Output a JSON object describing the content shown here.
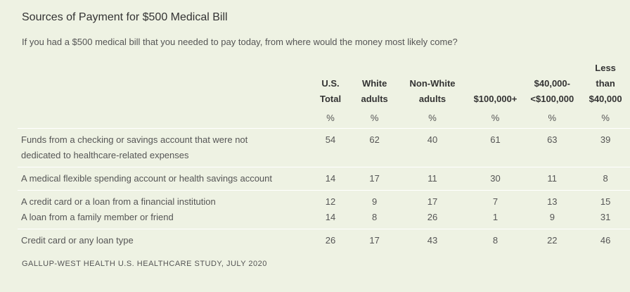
{
  "title": "Sources of Payment for $500 Medical Bill",
  "subtitle": "If you had a $500 medical bill that you needed to pay today, from where would the money most likely come?",
  "columns": [
    {
      "line1": "",
      "line2": "U.S.",
      "line3": "Total"
    },
    {
      "line1": "",
      "line2": "White",
      "line3": "adults"
    },
    {
      "line1": "",
      "line2": "Non-White",
      "line3": "adults"
    },
    {
      "line1": "",
      "line2": "",
      "line3": "$100,000+"
    },
    {
      "line1": "",
      "line2": "$40,000-",
      "line3": "<$100,000"
    },
    {
      "line1": "Less",
      "line2": "than",
      "line3": "$40,000"
    }
  ],
  "pct_row": [
    "%",
    "%",
    "%",
    "%",
    "%",
    "%"
  ],
  "rows": [
    {
      "label1": "Funds from a checking or savings account that were not",
      "label2": "dedicated to healthcare-related expenses",
      "values": [
        "54",
        "62",
        "40",
        "61",
        "63",
        "39"
      ]
    },
    {
      "label": "A medical flexible spending account or health savings account",
      "values": [
        "14",
        "17",
        "11",
        "30",
        "11",
        "8"
      ]
    },
    {
      "label": "A credit card or a loan from a financial institution",
      "values": [
        "12",
        "9",
        "17",
        "7",
        "13",
        "15"
      ]
    },
    {
      "label": "A loan from a family member or friend",
      "values": [
        "14",
        "8",
        "26",
        "1",
        "9",
        "31"
      ]
    },
    {
      "label": "Credit card or any loan type",
      "values": [
        "26",
        "17",
        "43",
        "8",
        "22",
        "46"
      ]
    }
  ],
  "source": "GALLUP-WEST HEALTH U.S. HEALTHCARE STUDY, JULY 2020"
}
